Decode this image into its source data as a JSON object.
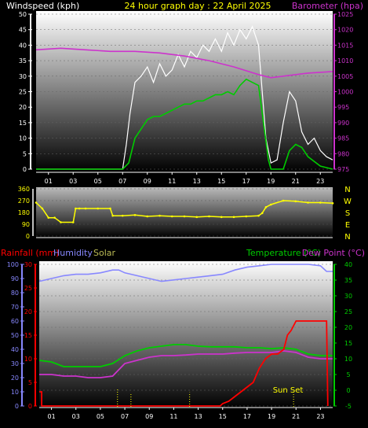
{
  "header": {
    "windspeed_title": "Windspeed (kph)",
    "graph_title": "24 hour graph day : 22 April 2025",
    "barometer_title": "Barometer (hpa)"
  },
  "legend2": {
    "rainfall": "Rainfall (mm)",
    "humidity": "Humidity",
    "solar": "Solar",
    "temperature": "Temperature (°C)",
    "dewpoint": "Dew Point (°C)"
  },
  "annotations": {
    "sunset": "Sun Set"
  },
  "colors": {
    "wind_gust": "#ffffff",
    "wind_avg": "#00cc00",
    "barometer": "#cc33cc",
    "wind_dir": "#ffff00",
    "rainfall": "#ff0000",
    "humidity": "#8888ff",
    "temperature": "#00cc00",
    "dewpoint": "#cc33cc",
    "solar": "#ffff00",
    "axis_tick_labels": "#ffff00"
  },
  "chart_data": [
    {
      "type": "line",
      "name": "wind and barometer",
      "xlabels": [
        "01",
        "03",
        "05",
        "07",
        "09",
        "11",
        "13",
        "15",
        "17",
        "19",
        "21",
        "23"
      ],
      "xlim": [
        0,
        24
      ],
      "y_left": {
        "label": "Windspeed (kph)",
        "ticks": [
          0,
          5,
          10,
          15,
          20,
          25,
          30,
          35,
          40,
          45,
          50
        ],
        "ylim": [
          0,
          50
        ]
      },
      "y_right": {
        "label": "Barometer (hpa)",
        "ticks": [
          975,
          980,
          985,
          990,
          995,
          1000,
          1005,
          1010,
          1015,
          1020,
          1025
        ],
        "ylim": [
          975,
          1025
        ]
      },
      "series": [
        {
          "name": "gust",
          "x": [
            0,
            6.5,
            7,
            7.3,
            7.6,
            8,
            8.5,
            9,
            9.5,
            10,
            10.5,
            11,
            11.5,
            12,
            12.5,
            13,
            13.5,
            14,
            14.5,
            15,
            15.5,
            16,
            16.5,
            17,
            17.5,
            18,
            18.3,
            18.6,
            19,
            19.5,
            20,
            20.5,
            21,
            21.5,
            22,
            22.5,
            23,
            23.5,
            24
          ],
          "values": [
            0,
            0,
            0,
            8,
            18,
            28,
            30,
            33,
            28,
            34,
            30,
            32,
            37,
            33,
            38,
            36,
            40,
            38,
            42,
            38,
            44,
            40,
            45,
            42,
            46,
            40,
            25,
            10,
            2,
            3,
            15,
            25,
            22,
            12,
            8,
            10,
            6,
            4,
            3
          ]
        },
        {
          "name": "average",
          "x": [
            0,
            7,
            7.5,
            8,
            8.5,
            9,
            9.5,
            10,
            10.5,
            11,
            11.5,
            12,
            12.5,
            13,
            13.5,
            14,
            14.5,
            15,
            15.5,
            16,
            16.5,
            17,
            17.5,
            18,
            18.4,
            18.8,
            19,
            20,
            20.5,
            21,
            21.5,
            22,
            23,
            24
          ],
          "values": [
            0,
            0,
            2,
            10,
            13,
            16,
            17,
            17,
            18,
            19,
            20,
            21,
            21,
            22,
            22,
            23,
            24,
            24,
            25,
            24,
            27,
            29,
            28,
            27,
            15,
            3,
            0,
            0,
            6,
            8,
            7,
            4,
            1,
            0
          ]
        },
        {
          "name": "barometer",
          "x": [
            0,
            2,
            4,
            6,
            8,
            10,
            12,
            14,
            16,
            18,
            19,
            20,
            22,
            24
          ],
          "values": [
            1013.5,
            1014,
            1013.5,
            1013,
            1013,
            1012.5,
            1011.5,
            1010,
            1008,
            1005.5,
            1004.5,
            1005,
            1006,
            1006.5
          ]
        }
      ]
    },
    {
      "type": "scatter",
      "name": "wind direction",
      "xlabels": [
        "01",
        "03",
        "05",
        "07",
        "09",
        "11",
        "13",
        "15",
        "17",
        "19",
        "21",
        "23"
      ],
      "xlim": [
        0,
        24
      ],
      "y_left": {
        "ticks": [
          0,
          90,
          180,
          270,
          360
        ],
        "ylim": [
          0,
          360
        ]
      },
      "y_right": {
        "ticks": [
          "N",
          "W",
          "S",
          "E",
          "N"
        ]
      },
      "series": [
        {
          "name": "direction",
          "x": [
            0,
            0.5,
            1,
            1.5,
            2,
            3,
            3.2,
            3.5,
            4,
            5,
            6,
            6.2,
            7,
            8,
            9,
            10,
            11,
            12,
            13,
            14,
            15,
            16,
            17,
            18,
            18.3,
            18.6,
            19,
            20,
            21,
            22,
            23,
            24
          ],
          "values": [
            255,
            210,
            140,
            140,
            105,
            105,
            210,
            210,
            210,
            210,
            210,
            155,
            155,
            160,
            150,
            155,
            150,
            150,
            145,
            150,
            145,
            145,
            150,
            155,
            175,
            220,
            240,
            270,
            265,
            255,
            255,
            250
          ]
        }
      ]
    },
    {
      "type": "line",
      "name": "rain humidity temperature",
      "xlabels": [
        "01",
        "03",
        "05",
        "07",
        "09",
        "11",
        "13",
        "15",
        "17",
        "19",
        "21",
        "23"
      ],
      "xlim": [
        0,
        24
      ],
      "y_left_rain": {
        "label": "Rainfall (mm)",
        "ticks": [
          0,
          5,
          10,
          15,
          20,
          25,
          30
        ],
        "ylim": [
          0,
          30
        ]
      },
      "y_left_humidity": {
        "label": "Humidity",
        "ticks": [
          0,
          10,
          20,
          30,
          40,
          50,
          60,
          70,
          80,
          90,
          100
        ],
        "ylim": [
          0,
          100
        ]
      },
      "y_right_temp": {
        "label": "Temperature (°C)",
        "ticks": [
          -5,
          0,
          5,
          10,
          15,
          20,
          25,
          30,
          35,
          40
        ],
        "ylim": [
          -5,
          40
        ]
      },
      "series": [
        {
          "name": "humidity",
          "x": [
            0,
            1,
            2,
            3,
            4,
            5,
            6,
            6.5,
            7,
            8,
            9,
            10,
            11,
            12,
            13,
            14,
            15,
            16,
            17,
            18,
            19,
            20,
            21,
            22,
            23,
            23.5,
            24
          ],
          "values": [
            88,
            90,
            92,
            93,
            93,
            94,
            96,
            96,
            94,
            92,
            90,
            88,
            89,
            90,
            91,
            92,
            93,
            96,
            98,
            99,
            100,
            100,
            100,
            100,
            99,
            95,
            95
          ]
        },
        {
          "name": "temperature",
          "x": [
            0,
            1,
            2,
            3,
            4,
            5,
            6,
            7,
            8,
            9,
            10,
            11,
            12,
            13,
            14,
            15,
            16,
            17,
            18,
            19,
            20,
            21,
            22,
            23,
            24
          ],
          "values": [
            9.5,
            9,
            7.5,
            7.5,
            7.5,
            7.5,
            8.5,
            11,
            12.5,
            13.5,
            14,
            14.5,
            14.5,
            14,
            13.8,
            13.8,
            13.8,
            13.5,
            13.5,
            13.2,
            13.5,
            13,
            11.5,
            11,
            11
          ]
        },
        {
          "name": "dewpoint",
          "x": [
            0,
            1,
            2,
            3,
            4,
            5,
            6,
            7,
            8,
            9,
            10,
            11,
            12,
            13,
            14,
            15,
            16,
            17,
            18,
            19,
            20,
            21,
            22,
            23,
            24
          ],
          "values": [
            5,
            5,
            4.5,
            4.5,
            4,
            4,
            4.5,
            8.5,
            9.5,
            10.5,
            11,
            11,
            11.2,
            11.5,
            11.5,
            11.5,
            11.8,
            12,
            12,
            12,
            12.5,
            12,
            10.5,
            10,
            10
          ]
        },
        {
          "name": "rainfall",
          "x": [
            0,
            0.2,
            0.2,
            14.8,
            15,
            15.5,
            16,
            16.5,
            17,
            17.5,
            18,
            18.5,
            19,
            19.5,
            20,
            20.3,
            20.6,
            21,
            22,
            23,
            23.5,
            23.6
          ],
          "values": [
            3,
            3,
            0,
            0,
            0.5,
            1,
            2,
            3,
            4,
            5,
            8,
            10,
            11,
            11,
            12,
            15,
            16,
            18,
            18,
            18,
            18,
            0
          ]
        },
        {
          "name": "solar",
          "x": [
            6.4,
            7.5,
            12.3,
            20.8
          ],
          "values": [
            5,
            2,
            3,
            4
          ]
        }
      ]
    }
  ]
}
